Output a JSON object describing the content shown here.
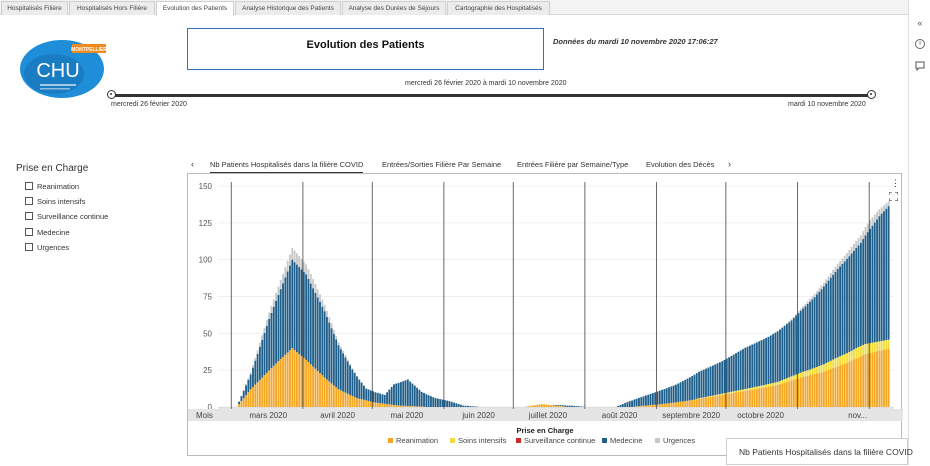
{
  "page_tabs": [
    {
      "label": "Hospitalisés Filière",
      "active": false
    },
    {
      "label": "Hospitalisés Hors Filière",
      "active": false
    },
    {
      "label": "Evolution des Patients",
      "active": true
    },
    {
      "label": "Analyse Historique des Patients",
      "active": false
    },
    {
      "label": "Analyse des Durées de Séjours",
      "active": false
    },
    {
      "label": "Cartographie des Hospitalisés",
      "active": false
    }
  ],
  "logo": {
    "text": "CHU",
    "ribbon": "MONTPELLIER"
  },
  "header": {
    "title": "Evolution des Patients",
    "data_date": "Données du mardi 10 novembre 2020 17:06:27"
  },
  "date_slider": {
    "range_label": "mercredi 26 février 2020 à mardi 10 novembre 2020",
    "start_label": "mercredi 26 février 2020",
    "end_label": "mardi 10 novembre 2020"
  },
  "filter": {
    "title": "Prise en Charge",
    "items": [
      "Reanimation",
      "Soins intensifs",
      "Surveillance continue",
      "Medecine",
      "Urgences"
    ]
  },
  "chart_tabs": {
    "items": [
      {
        "label": "Nb Patients Hospitalisés dans la filière COVID",
        "active": true
      },
      {
        "label": "Entrées/Sorties Filière Par Semaine",
        "active": false
      },
      {
        "label": "Entrées Filière par Semaine/Type",
        "active": false
      },
      {
        "label": "Evolution des Décès",
        "active": false
      }
    ],
    "prev_icon": "chevron-left-icon",
    "next_icon": "chevron-right-icon"
  },
  "tooltip": {
    "text": "Nb Patients Hospitalisés dans la filière COVID"
  },
  "rail_icons": [
    "collapse-icon",
    "info-icon",
    "comment-icon"
  ],
  "chart_data": {
    "type": "bar",
    "stacked": true,
    "title": "",
    "xlabel": "Mois",
    "ylabel": "",
    "ylim": [
      0,
      150
    ],
    "yticks": [
      0,
      25,
      50,
      75,
      100,
      125,
      150
    ],
    "month_labels": [
      "mars 2020",
      "avril 2020",
      "mai 2020",
      "juin 2020",
      "juillet 2020",
      "août 2020",
      "septembre 2020",
      "octobre 2020",
      "nov..."
    ],
    "grid": true,
    "legend_title": "Prise en Charge",
    "legend_position": "bottom",
    "series": [
      {
        "name": "Reanimation",
        "color": "#f5a623"
      },
      {
        "name": "Soins intensifs",
        "color": "#f3dc3a"
      },
      {
        "name": "Surveillance continue",
        "color": "#d62728"
      },
      {
        "name": "Medecine",
        "color": "#1f5f8b"
      },
      {
        "name": "Urgences",
        "color": "#c8c8c8"
      }
    ],
    "daily_keypoints": {
      "comment": "approx totals per stack, read off gridlines",
      "reanimation": [
        [
          0,
          0
        ],
        [
          6,
          0
        ],
        [
          12,
          12
        ],
        [
          22,
          28
        ],
        [
          30,
          40
        ],
        [
          36,
          32
        ],
        [
          44,
          20
        ],
        [
          50,
          12
        ],
        [
          58,
          6
        ],
        [
          66,
          3
        ],
        [
          76,
          1
        ],
        [
          90,
          0
        ],
        [
          130,
          0
        ],
        [
          138,
          2
        ],
        [
          150,
          0
        ],
        [
          176,
          0
        ],
        [
          190,
          2
        ],
        [
          200,
          4
        ],
        [
          215,
          8
        ],
        [
          230,
          12
        ],
        [
          240,
          15
        ],
        [
          250,
          20
        ],
        [
          260,
          24
        ],
        [
          270,
          30
        ],
        [
          278,
          36
        ],
        [
          289,
          40
        ]
      ],
      "soins": [
        [
          0,
          0
        ],
        [
          200,
          0
        ],
        [
          220,
          1
        ],
        [
          240,
          2
        ],
        [
          255,
          4
        ],
        [
          265,
          6
        ],
        [
          275,
          7
        ],
        [
          289,
          6
        ]
      ],
      "medecine": [
        [
          0,
          0
        ],
        [
          6,
          0
        ],
        [
          12,
          10
        ],
        [
          20,
          35
        ],
        [
          26,
          50
        ],
        [
          30,
          60
        ],
        [
          36,
          58
        ],
        [
          44,
          45
        ],
        [
          50,
          30
        ],
        [
          56,
          18
        ],
        [
          62,
          8
        ],
        [
          70,
          6
        ],
        [
          74,
          14
        ],
        [
          80,
          18
        ],
        [
          86,
          10
        ],
        [
          92,
          6
        ],
        [
          98,
          4
        ],
        [
          104,
          1
        ],
        [
          112,
          0
        ],
        [
          140,
          0
        ],
        [
          150,
          1
        ],
        [
          158,
          0
        ],
        [
          170,
          0
        ],
        [
          176,
          4
        ],
        [
          186,
          8
        ],
        [
          196,
          12
        ],
        [
          206,
          18
        ],
        [
          216,
          22
        ],
        [
          226,
          28
        ],
        [
          236,
          32
        ],
        [
          246,
          38
        ],
        [
          256,
          48
        ],
        [
          266,
          60
        ],
        [
          276,
          70
        ],
        [
          284,
          85
        ],
        [
          289,
          92
        ]
      ],
      "urgences": [
        [
          0,
          0
        ],
        [
          6,
          0
        ],
        [
          14,
          2
        ],
        [
          30,
          8
        ],
        [
          40,
          6
        ],
        [
          50,
          2
        ],
        [
          60,
          0
        ],
        [
          240,
          0
        ],
        [
          255,
          2
        ],
        [
          270,
          4
        ],
        [
          280,
          6
        ],
        [
          289,
          3
        ]
      ]
    }
  }
}
